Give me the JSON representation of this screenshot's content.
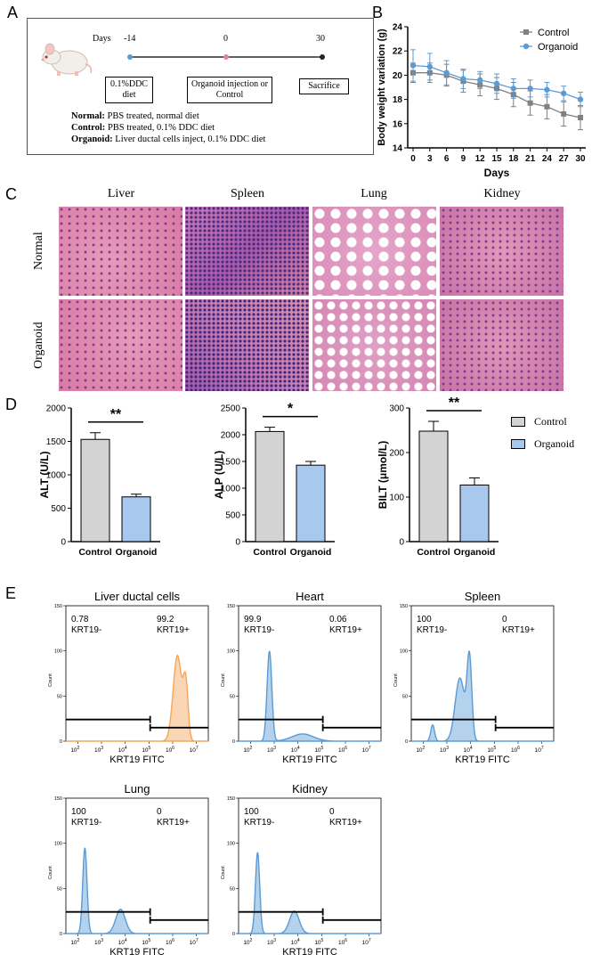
{
  "panels": {
    "a": "A",
    "b": "B",
    "c": "C",
    "d": "D",
    "e": "E"
  },
  "panel_a": {
    "days_label": "Days",
    "timeline": [
      {
        "day": "-14",
        "box": "0.1%DDC diet"
      },
      {
        "day": "0",
        "box": "Organoid injection or Control"
      },
      {
        "day": "30",
        "box": "Sacrifice"
      }
    ],
    "groups": [
      {
        "name": "Normal:",
        "desc": " PBS treated, normal diet"
      },
      {
        "name": "Control:",
        "desc": " PBS treated, 0.1% DDC diet"
      },
      {
        "name": "Organoid:",
        "desc": " Liver ductal cells inject, 0.1% DDC diet"
      }
    ]
  },
  "panel_c": {
    "columns": [
      "Liver",
      "Spleen",
      "Lung",
      "Kidney"
    ],
    "rows": [
      "Normal",
      "Organoid"
    ]
  },
  "panel_d": {
    "legend": [
      "Control",
      "Organoid"
    ],
    "colors": {
      "control": "#d3d3d3",
      "organoid": "#a9c8ee"
    }
  },
  "chart_data": [
    {
      "type": "line",
      "ylabel": "Body weight variation (g)",
      "xlabel": "Days",
      "ylim": [
        14,
        24
      ],
      "yticks": [
        14,
        16,
        18,
        20,
        22,
        24
      ],
      "x": [
        0,
        3,
        6,
        9,
        12,
        15,
        18,
        21,
        24,
        27,
        30
      ],
      "legend_placement": "top-right",
      "series": [
        {
          "name": "Control",
          "color": "#808080",
          "marker": "square",
          "values": [
            20.2,
            20.2,
            20.0,
            19.5,
            19.2,
            18.9,
            18.4,
            17.7,
            17.4,
            16.8,
            16.5
          ],
          "errors": [
            0.8,
            0.8,
            0.9,
            0.9,
            0.9,
            0.9,
            1.0,
            1.0,
            1.0,
            1.0,
            1.0
          ]
        },
        {
          "name": "Organoid",
          "color": "#5b9bd5",
          "marker": "circle",
          "values": [
            20.8,
            20.7,
            20.2,
            19.7,
            19.6,
            19.3,
            18.9,
            18.9,
            18.8,
            18.5,
            18.0
          ],
          "errors": [
            1.3,
            1.1,
            1.0,
            0.8,
            0.7,
            0.8,
            0.8,
            0.7,
            0.6,
            0.6,
            0.6
          ]
        }
      ]
    },
    {
      "type": "bar",
      "ylabel": "ALT (U/L)",
      "categories": [
        "Control",
        "Organoid"
      ],
      "values": [
        1530,
        670
      ],
      "errors": [
        100,
        40
      ],
      "ylim": [
        0,
        2000
      ],
      "yticks": [
        0,
        500,
        1000,
        1500,
        2000
      ],
      "significance": "**"
    },
    {
      "type": "bar",
      "ylabel": "ALP (U/L)",
      "categories": [
        "Control",
        "Organoid"
      ],
      "values": [
        2060,
        1430
      ],
      "errors": [
        80,
        70
      ],
      "ylim": [
        0,
        2500
      ],
      "yticks": [
        0,
        500,
        1000,
        1500,
        2000,
        2500
      ],
      "significance": "*"
    },
    {
      "type": "bar",
      "ylabel": "BILT (μmol/L)",
      "categories": [
        "Control",
        "Organoid"
      ],
      "values": [
        248,
        127
      ],
      "errors": [
        22,
        16
      ],
      "ylim": [
        0,
        300
      ],
      "yticks": [
        0,
        100,
        200,
        300
      ],
      "significance": "**"
    },
    {
      "type": "area",
      "title": "Liver ductal cells",
      "xlabel": "KRT19  FITC",
      "ylabel": "Count",
      "ylim": [
        0,
        150
      ],
      "yticks": [
        0,
        50,
        100,
        150
      ],
      "xtick_exponents": [
        2,
        3,
        4,
        5,
        6,
        7
      ],
      "left_pct": "0.78",
      "left_label": "KRT19-",
      "right_pct": "99.2",
      "right_label": "KRT19+",
      "color": "#f5a55a",
      "peaks": [
        {
          "x": 6.2,
          "h": 95,
          "w": 0.18
        },
        {
          "x": 6.55,
          "h": 60,
          "w": 0.1
        }
      ]
    },
    {
      "type": "area",
      "title": "Heart",
      "xlabel": "KRT19  FITC",
      "ylabel": "Count",
      "ylim": [
        0,
        150
      ],
      "yticks": [
        0,
        50,
        100,
        150
      ],
      "xtick_exponents": [
        2,
        3,
        4,
        5,
        6,
        7
      ],
      "left_pct": "99.9",
      "left_label": "KRT19-",
      "right_pct": "0.06",
      "right_label": "KRT19+",
      "color": "#5b9bd5",
      "peaks": [
        {
          "x": 2.8,
          "h": 100,
          "w": 0.1
        },
        {
          "x": 4.2,
          "h": 8,
          "w": 0.45
        }
      ]
    },
    {
      "type": "area",
      "title": "Spleen",
      "xlabel": "KRT19  FITC",
      "ylabel": "Count",
      "ylim": [
        0,
        150
      ],
      "yticks": [
        0,
        50,
        100,
        150
      ],
      "xtick_exponents": [
        2,
        3,
        4,
        5,
        6,
        7
      ],
      "left_pct": "100",
      "left_label": "KRT19-",
      "right_pct": "0",
      "right_label": "KRT19+",
      "color": "#5b9bd5",
      "peaks": [
        {
          "x": 2.4,
          "h": 18,
          "w": 0.08
        },
        {
          "x": 3.55,
          "h": 70,
          "w": 0.2
        },
        {
          "x": 3.95,
          "h": 90,
          "w": 0.1
        }
      ]
    },
    {
      "type": "area",
      "title": "Lung",
      "xlabel": "KRT19  FITC",
      "ylabel": "Count",
      "ylim": [
        0,
        150
      ],
      "yticks": [
        0,
        50,
        100,
        150
      ],
      "xtick_exponents": [
        2,
        3,
        4,
        5,
        6,
        7
      ],
      "left_pct": "100",
      "left_label": "KRT19-",
      "right_pct": "0",
      "right_label": "KRT19+",
      "color": "#5b9bd5",
      "peaks": [
        {
          "x": 2.3,
          "h": 95,
          "w": 0.09
        },
        {
          "x": 3.8,
          "h": 27,
          "w": 0.2
        }
      ]
    },
    {
      "type": "area",
      "title": "Kidney",
      "xlabel": "KRT19  FITC",
      "ylabel": "Count",
      "ylim": [
        0,
        150
      ],
      "yticks": [
        0,
        50,
        100,
        150
      ],
      "xtick_exponents": [
        2,
        3,
        4,
        5,
        6,
        7
      ],
      "left_pct": "100",
      "left_label": "KRT19-",
      "right_pct": "0",
      "right_label": "KRT19+",
      "color": "#5b9bd5",
      "peaks": [
        {
          "x": 2.3,
          "h": 90,
          "w": 0.09
        },
        {
          "x": 3.85,
          "h": 25,
          "w": 0.2
        }
      ]
    }
  ]
}
